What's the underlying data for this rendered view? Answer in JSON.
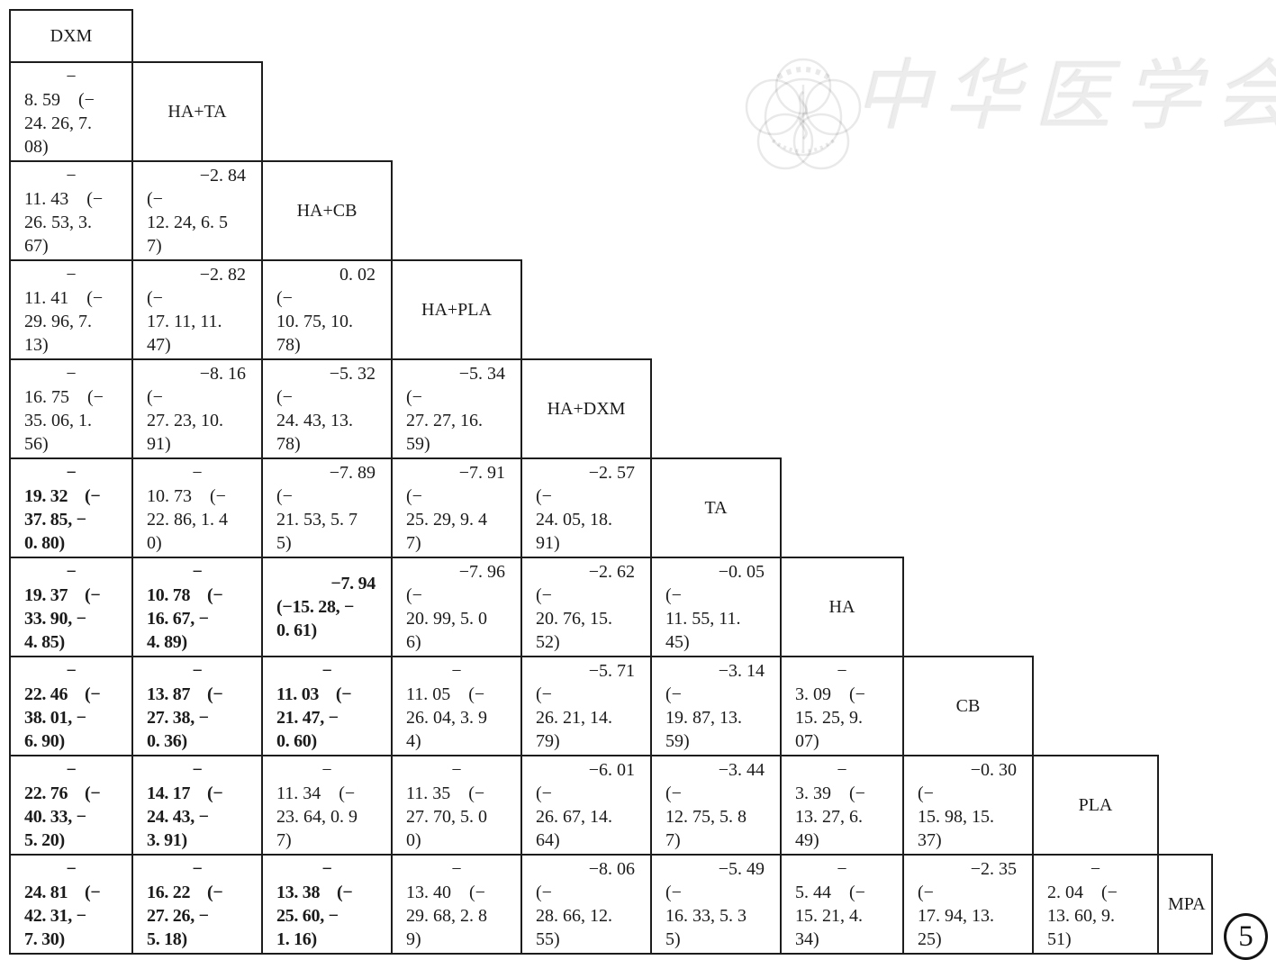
{
  "figure": {
    "number": "5"
  },
  "watermark": {
    "text": "中华医学会",
    "logo_icon": "chinese-medical-association-emblem"
  },
  "league_table": {
    "treatments": [
      "DXM",
      "HA+TA",
      "HA+CB",
      "HA+PLA",
      "HA+DXM",
      "TA",
      "HA",
      "CB",
      "PLA",
      "MPA"
    ],
    "rows": [
      {
        "cells": [
          {
            "label": "DXM"
          }
        ]
      },
      {
        "cells": [
          {
            "v": "−8.59 (−24.26, 7.08)",
            "b": false,
            "lines": [
              "−",
              "8. 59    (−",
              "24. 26, 7.",
              "08)"
            ]
          },
          {
            "label": "HA+TA"
          }
        ]
      },
      {
        "cells": [
          {
            "v": "−11.43 (−26.53, 3.67)",
            "b": false,
            "lines": [
              "−",
              "11. 43    (−",
              "26. 53, 3.",
              "67)"
            ]
          },
          {
            "v": "−2.84 (−12.24, 6.57)",
            "b": false,
            "lines": [
              "−2. 84",
              "(−",
              "12. 24, 6. 5",
              "7)"
            ]
          },
          {
            "label": "HA+CB"
          }
        ]
      },
      {
        "cells": [
          {
            "v": "−11.41 (−29.96, 7.13)",
            "b": false,
            "lines": [
              "−",
              "11. 41    (−",
              "29. 96, 7.",
              "13)"
            ]
          },
          {
            "v": "−2.82 (−17.11, 11.47)",
            "b": false,
            "lines": [
              "−2. 82",
              "(−",
              "17. 11, 11.",
              "47)"
            ]
          },
          {
            "v": "0.02 (−10.75, 10.78)",
            "b": false,
            "lines": [
              "0. 02",
              "(−",
              "10. 75, 10.",
              "78)"
            ]
          },
          {
            "label": "HA+PLA"
          }
        ]
      },
      {
        "cells": [
          {
            "v": "−16.75 (−35.06, 1.56)",
            "b": false,
            "lines": [
              "−",
              "16. 75    (−",
              "35. 06, 1.",
              "56)"
            ]
          },
          {
            "v": "−8.16 (−27.23, 10.91)",
            "b": false,
            "lines": [
              "−8. 16",
              "(−",
              "27. 23, 10.",
              "91)"
            ]
          },
          {
            "v": "−5.32 (−24.43, 13.78)",
            "b": false,
            "lines": [
              "−5. 32",
              "(−",
              "24. 43, 13.",
              "78)"
            ]
          },
          {
            "v": "−5.34 (−27.27, 16.59)",
            "b": false,
            "lines": [
              "−5. 34",
              "(−",
              "27. 27, 16.",
              "59)"
            ]
          },
          {
            "label": "HA+DXM"
          }
        ]
      },
      {
        "cells": [
          {
            "v": "−19.32 (−37.85, −0.80)",
            "b": true,
            "lines": [
              "−",
              "19. 32    (−",
              "37. 85, −",
              "0. 80)"
            ]
          },
          {
            "v": "−10.73 (−22.86, 1.40)",
            "b": false,
            "lines": [
              "−",
              "10. 73    (−",
              "22. 86, 1. 4",
              "0)"
            ]
          },
          {
            "v": "−7.89 (−21.53, 5.75)",
            "b": false,
            "lines": [
              "−7. 89",
              "(−",
              "21. 53, 5. 7",
              "5)"
            ]
          },
          {
            "v": "−7.91 (−25.29, 9.47)",
            "b": false,
            "lines": [
              "−7. 91",
              "(−",
              "25. 29, 9. 4",
              "7)"
            ]
          },
          {
            "v": "−2.57 (−24.05, 18.91)",
            "b": false,
            "lines": [
              "−2. 57",
              "(−",
              "24. 05, 18.",
              "91)"
            ]
          },
          {
            "label": "TA"
          }
        ]
      },
      {
        "cells": [
          {
            "v": "−19.37 (−33.90, −4.85)",
            "b": true,
            "lines": [
              "−",
              "19. 37    (−",
              "33. 90, −",
              "4. 85)"
            ]
          },
          {
            "v": "−10.78 (−16.67, −4.89)",
            "b": true,
            "lines": [
              "−",
              "10. 78    (−",
              "16. 67, −",
              "4. 89)"
            ]
          },
          {
            "v": "−7.94 (−15.28, −0.61)",
            "b": true,
            "lines": [
              "−7. 94",
              "(−15. 28, −",
              "0. 61)"
            ]
          },
          {
            "v": "−7.96 (−20.99, 5.06)",
            "b": false,
            "lines": [
              "−7. 96",
              "(−",
              "20. 99, 5. 0",
              "6)"
            ]
          },
          {
            "v": "−2.62 (−20.76, 15.52)",
            "b": false,
            "lines": [
              "−2. 62",
              "(−",
              "20. 76, 15.",
              "52)"
            ]
          },
          {
            "v": "−0.05 (−11.55, 11.45)",
            "b": false,
            "lines": [
              "−0. 05",
              "(−",
              "11. 55, 11.",
              "45)"
            ]
          },
          {
            "label": "HA"
          }
        ]
      },
      {
        "cells": [
          {
            "v": "−22.46 (−38.01, −6.90)",
            "b": true,
            "lines": [
              "−",
              "22. 46    (−",
              "38. 01, −",
              "6. 90)"
            ]
          },
          {
            "v": "−13.87 (−27.38, −0.36)",
            "b": true,
            "lines": [
              "−",
              "13. 87    (−",
              "27. 38, −",
              "0. 36)"
            ]
          },
          {
            "v": "−11.03 (−21.47, −0.60)",
            "b": true,
            "lines": [
              "−",
              "11. 03    (−",
              "21. 47, −",
              "0. 60)"
            ]
          },
          {
            "v": "−11.05 (−26.04, 3.94)",
            "b": false,
            "lines": [
              "−",
              "11. 05    (−",
              "26. 04, 3. 9",
              "4)"
            ]
          },
          {
            "v": "−5.71 (−26.21, 14.79)",
            "b": false,
            "lines": [
              "−5. 71",
              "(−",
              "26. 21, 14.",
              "79)"
            ]
          },
          {
            "v": "−3.14 (−19.87, 13.59)",
            "b": false,
            "lines": [
              "−3. 14",
              "(−",
              "19. 87, 13.",
              "59)"
            ]
          },
          {
            "v": "−3.09 (−15.25, 9.07)",
            "b": false,
            "lines": [
              "−",
              "3. 09    (−",
              "15. 25, 9.",
              "07)"
            ]
          },
          {
            "label": "CB"
          }
        ]
      },
      {
        "cells": [
          {
            "v": "−22.76 (−40.33, −5.20)",
            "b": true,
            "lines": [
              "−",
              "22. 76    (−",
              "40. 33, −",
              "5. 20)"
            ]
          },
          {
            "v": "−14.17 (−24.43, −3.91)",
            "b": true,
            "lines": [
              "−",
              "14. 17    (−",
              "24. 43, −",
              "3. 91)"
            ]
          },
          {
            "v": "−11.34 (−23.64, 0.97)",
            "b": false,
            "lines": [
              "−",
              "11. 34    (−",
              "23. 64, 0. 9",
              "7)"
            ]
          },
          {
            "v": "−11.35 (−27.70, 5.00)",
            "b": false,
            "lines": [
              "−",
              "11. 35    (−",
              "27. 70, 5. 0",
              "0)"
            ]
          },
          {
            "v": "−6.01 (−26.67, 14.64)",
            "b": false,
            "lines": [
              "−6. 01",
              "(−",
              "26. 67, 14.",
              "64)"
            ]
          },
          {
            "v": "−3.44 (−12.75, 5.87)",
            "b": false,
            "lines": [
              "−3. 44",
              "(−",
              "12. 75, 5. 8",
              "7)"
            ]
          },
          {
            "v": "−3.39 (−13.27, 6.49)",
            "b": false,
            "lines": [
              "−",
              "3. 39    (−",
              "13. 27, 6.",
              "49)"
            ]
          },
          {
            "v": "−0.30 (−15.98, 15.37)",
            "b": false,
            "lines": [
              "−0. 30",
              "(−",
              "15. 98, 15.",
              "37)"
            ]
          },
          {
            "label": "PLA"
          }
        ]
      },
      {
        "cells": [
          {
            "v": "−24.81 (−42.31, −7.30)",
            "b": true,
            "lines": [
              "−",
              "24. 81    (−",
              "42. 31, −",
              "7. 30)"
            ]
          },
          {
            "v": "−16.22 (−27.26, −5.18)",
            "b": true,
            "lines": [
              "−",
              "16. 22    (−",
              "27. 26, −",
              "5. 18)"
            ]
          },
          {
            "v": "−13.38 (−25.60, −1.16)",
            "b": true,
            "lines": [
              "−",
              "13. 38    (−",
              "25. 60, −",
              "1. 16)"
            ]
          },
          {
            "v": "−13.40 (−29.68, 2.89)",
            "b": false,
            "lines": [
              "−",
              "13. 40    (−",
              "29. 68, 2. 8",
              "9)"
            ]
          },
          {
            "v": "−8.06 (−28.66, 12.55)",
            "b": false,
            "lines": [
              "−8. 06",
              "(−",
              "28. 66, 12.",
              "55)"
            ]
          },
          {
            "v": "−5.49 (−16.33, 5.35)",
            "b": false,
            "lines": [
              "−5. 49",
              "(−",
              "16. 33, 5. 3",
              "5)"
            ]
          },
          {
            "v": "−5.44 (−15.21, 4.34)",
            "b": false,
            "lines": [
              "−",
              "5. 44    (−",
              "15. 21, 4.",
              "34)"
            ]
          },
          {
            "v": "−2.35 (−17.94, 13.25)",
            "b": false,
            "lines": [
              "−2. 35",
              "(−",
              "17. 94, 13.",
              "25)"
            ]
          },
          {
            "v": "−2.04 (−13.60, 9.51)",
            "b": false,
            "lines": [
              "−",
              "2. 04    (−",
              "13. 60, 9.",
              "51)"
            ]
          },
          {
            "label": "MPA"
          }
        ]
      }
    ]
  }
}
